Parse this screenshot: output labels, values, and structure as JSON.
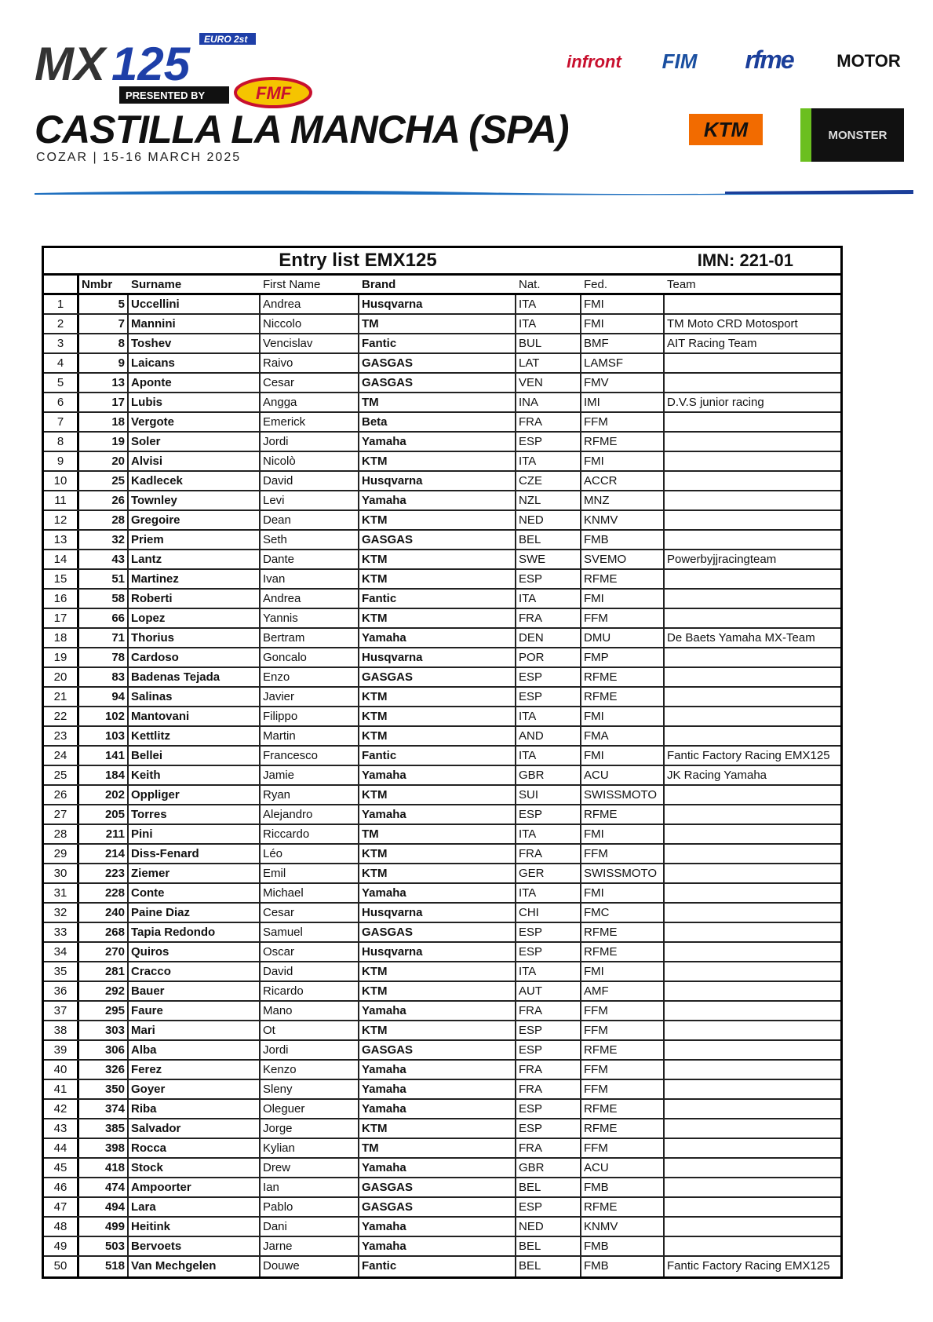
{
  "header": {
    "logo_text": "MX125",
    "logo_badge": "EURO 2st",
    "logo_presented": "PRESENTED BY",
    "logo_sponsor": "FMF",
    "title": "CASTILLA LA MANCHA (SPA)",
    "subtitle": "COZAR | 15-16 MARCH 2025",
    "sponsors": [
      "infront",
      "FIM",
      "rfme",
      "MOTOR",
      "KTM",
      "MONSTER"
    ],
    "colors": {
      "infront": "#c8102e",
      "fim": "#1a4fa0",
      "rfme": "#1b3f9a",
      "ktm": "#f26b00",
      "monster": "#6bbf1f",
      "swoosh": "#1e6fbf"
    }
  },
  "table": {
    "title": "Entry list EMX125",
    "imn": "IMN: 221-01",
    "columns": [
      "",
      "Nmbr",
      "Surname",
      "First Name",
      "Brand",
      "Nat.",
      "Fed.",
      "Team"
    ],
    "rows": [
      [
        "1",
        "5",
        "Uccellini",
        "Andrea",
        "Husqvarna",
        "ITA",
        "FMI",
        ""
      ],
      [
        "2",
        "7",
        "Mannini",
        "Niccolo",
        "TM",
        "ITA",
        "FMI",
        "TM Moto CRD Motosport"
      ],
      [
        "3",
        "8",
        "Toshev",
        "Vencislav",
        "Fantic",
        "BUL",
        "BMF",
        "AIT Racing Team"
      ],
      [
        "4",
        "9",
        "Laicans",
        "Raivo",
        "GASGAS",
        "LAT",
        "LAMSF",
        ""
      ],
      [
        "5",
        "13",
        "Aponte",
        "Cesar",
        "GASGAS",
        "VEN",
        "FMV",
        ""
      ],
      [
        "6",
        "17",
        "Lubis",
        "Angga",
        "TM",
        "INA",
        "IMI",
        "D.V.S junior racing"
      ],
      [
        "7",
        "18",
        "Vergote",
        "Emerick",
        "Beta",
        "FRA",
        "FFM",
        ""
      ],
      [
        "8",
        "19",
        "Soler",
        "Jordi",
        "Yamaha",
        "ESP",
        "RFME",
        ""
      ],
      [
        "9",
        "20",
        "Alvisi",
        "Nicolò",
        "KTM",
        "ITA",
        "FMI",
        ""
      ],
      [
        "10",
        "25",
        "Kadlecek",
        "David",
        "Husqvarna",
        "CZE",
        "ACCR",
        ""
      ],
      [
        "11",
        "26",
        "Townley",
        "Levi",
        "Yamaha",
        "NZL",
        "MNZ",
        ""
      ],
      [
        "12",
        "28",
        "Gregoire",
        "Dean",
        "KTM",
        "NED",
        "KNMV",
        ""
      ],
      [
        "13",
        "32",
        "Priem",
        "Seth",
        "GASGAS",
        "BEL",
        "FMB",
        ""
      ],
      [
        "14",
        "43",
        "Lantz",
        "Dante",
        "KTM",
        "SWE",
        "SVEMO",
        "Powerbyjjracingteam"
      ],
      [
        "15",
        "51",
        "Martinez",
        "Ivan",
        "KTM",
        "ESP",
        "RFME",
        ""
      ],
      [
        "16",
        "58",
        "Roberti",
        "Andrea",
        "Fantic",
        "ITA",
        "FMI",
        ""
      ],
      [
        "17",
        "66",
        "Lopez",
        "Yannis",
        "KTM",
        "FRA",
        "FFM",
        ""
      ],
      [
        "18",
        "71",
        "Thorius",
        "Bertram",
        "Yamaha",
        "DEN",
        "DMU",
        "De Baets Yamaha MX-Team"
      ],
      [
        "19",
        "78",
        "Cardoso",
        "Goncalo",
        "Husqvarna",
        "POR",
        "FMP",
        ""
      ],
      [
        "20",
        "83",
        "Badenas Tejada",
        "Enzo",
        "GASGAS",
        "ESP",
        "RFME",
        ""
      ],
      [
        "21",
        "94",
        "Salinas",
        "Javier",
        "KTM",
        "ESP",
        "RFME",
        ""
      ],
      [
        "22",
        "102",
        "Mantovani",
        "Filippo",
        "KTM",
        "ITA",
        "FMI",
        ""
      ],
      [
        "23",
        "103",
        "Kettlitz",
        "Martin",
        "KTM",
        "AND",
        "FMA",
        ""
      ],
      [
        "24",
        "141",
        "Bellei",
        "Francesco",
        "Fantic",
        "ITA",
        "FMI",
        "Fantic Factory Racing EMX125"
      ],
      [
        "25",
        "184",
        "Keith",
        "Jamie",
        "Yamaha",
        "GBR",
        "ACU",
        "JK Racing Yamaha"
      ],
      [
        "26",
        "202",
        "Oppliger",
        "Ryan",
        "KTM",
        "SUI",
        "SWISSMOTO",
        ""
      ],
      [
        "27",
        "205",
        "Torres",
        "Alejandro",
        "Yamaha",
        "ESP",
        "RFME",
        ""
      ],
      [
        "28",
        "211",
        "Pini",
        "Riccardo",
        "TM",
        "ITA",
        "FMI",
        ""
      ],
      [
        "29",
        "214",
        "Diss-Fenard",
        "Léo",
        "KTM",
        "FRA",
        "FFM",
        ""
      ],
      [
        "30",
        "223",
        "Ziemer",
        "Emil",
        "KTM",
        "GER",
        "SWISSMOTO",
        ""
      ],
      [
        "31",
        "228",
        "Conte",
        "Michael",
        "Yamaha",
        "ITA",
        "FMI",
        ""
      ],
      [
        "32",
        "240",
        "Paine Diaz",
        "Cesar",
        "Husqvarna",
        "CHI",
        "FMC",
        ""
      ],
      [
        "33",
        "268",
        "Tapia Redondo",
        "Samuel",
        "GASGAS",
        "ESP",
        "RFME",
        ""
      ],
      [
        "34",
        "270",
        "Quiros",
        "Oscar",
        "Husqvarna",
        "ESP",
        "RFME",
        ""
      ],
      [
        "35",
        "281",
        "Cracco",
        "David",
        "KTM",
        "ITA",
        "FMI",
        ""
      ],
      [
        "36",
        "292",
        "Bauer",
        "Ricardo",
        "KTM",
        "AUT",
        "AMF",
        ""
      ],
      [
        "37",
        "295",
        "Faure",
        "Mano",
        "Yamaha",
        "FRA",
        "FFM",
        ""
      ],
      [
        "38",
        "303",
        "Mari",
        "Ot",
        "KTM",
        "ESP",
        "FFM",
        ""
      ],
      [
        "39",
        "306",
        "Alba",
        "Jordi",
        "GASGAS",
        "ESP",
        "RFME",
        ""
      ],
      [
        "40",
        "326",
        "Ferez",
        "Kenzo",
        "Yamaha",
        "FRA",
        "FFM",
        ""
      ],
      [
        "41",
        "350",
        "Goyer",
        "Sleny",
        "Yamaha",
        "FRA",
        "FFM",
        ""
      ],
      [
        "42",
        "374",
        "Riba",
        "Oleguer",
        "Yamaha",
        "ESP",
        "RFME",
        ""
      ],
      [
        "43",
        "385",
        "Salvador",
        "Jorge",
        "KTM",
        "ESP",
        "RFME",
        ""
      ],
      [
        "44",
        "398",
        "Rocca",
        "Kylian",
        "TM",
        "FRA",
        "FFM",
        ""
      ],
      [
        "45",
        "418",
        "Stock",
        "Drew",
        "Yamaha",
        "GBR",
        "ACU",
        ""
      ],
      [
        "46",
        "474",
        "Ampoorter",
        "Ian",
        "GASGAS",
        "BEL",
        "FMB",
        ""
      ],
      [
        "47",
        "494",
        "Lara",
        "Pablo",
        "GASGAS",
        "ESP",
        "RFME",
        ""
      ],
      [
        "48",
        "499",
        "Heitink",
        "Dani",
        "Yamaha",
        "NED",
        "KNMV",
        ""
      ],
      [
        "49",
        "503",
        "Bervoets",
        "Jarne",
        "Yamaha",
        "BEL",
        "FMB",
        ""
      ],
      [
        "50",
        "518",
        "Van Mechgelen",
        "Douwe",
        "Fantic",
        "BEL",
        "FMB",
        "Fantic Factory Racing EMX125"
      ]
    ]
  }
}
